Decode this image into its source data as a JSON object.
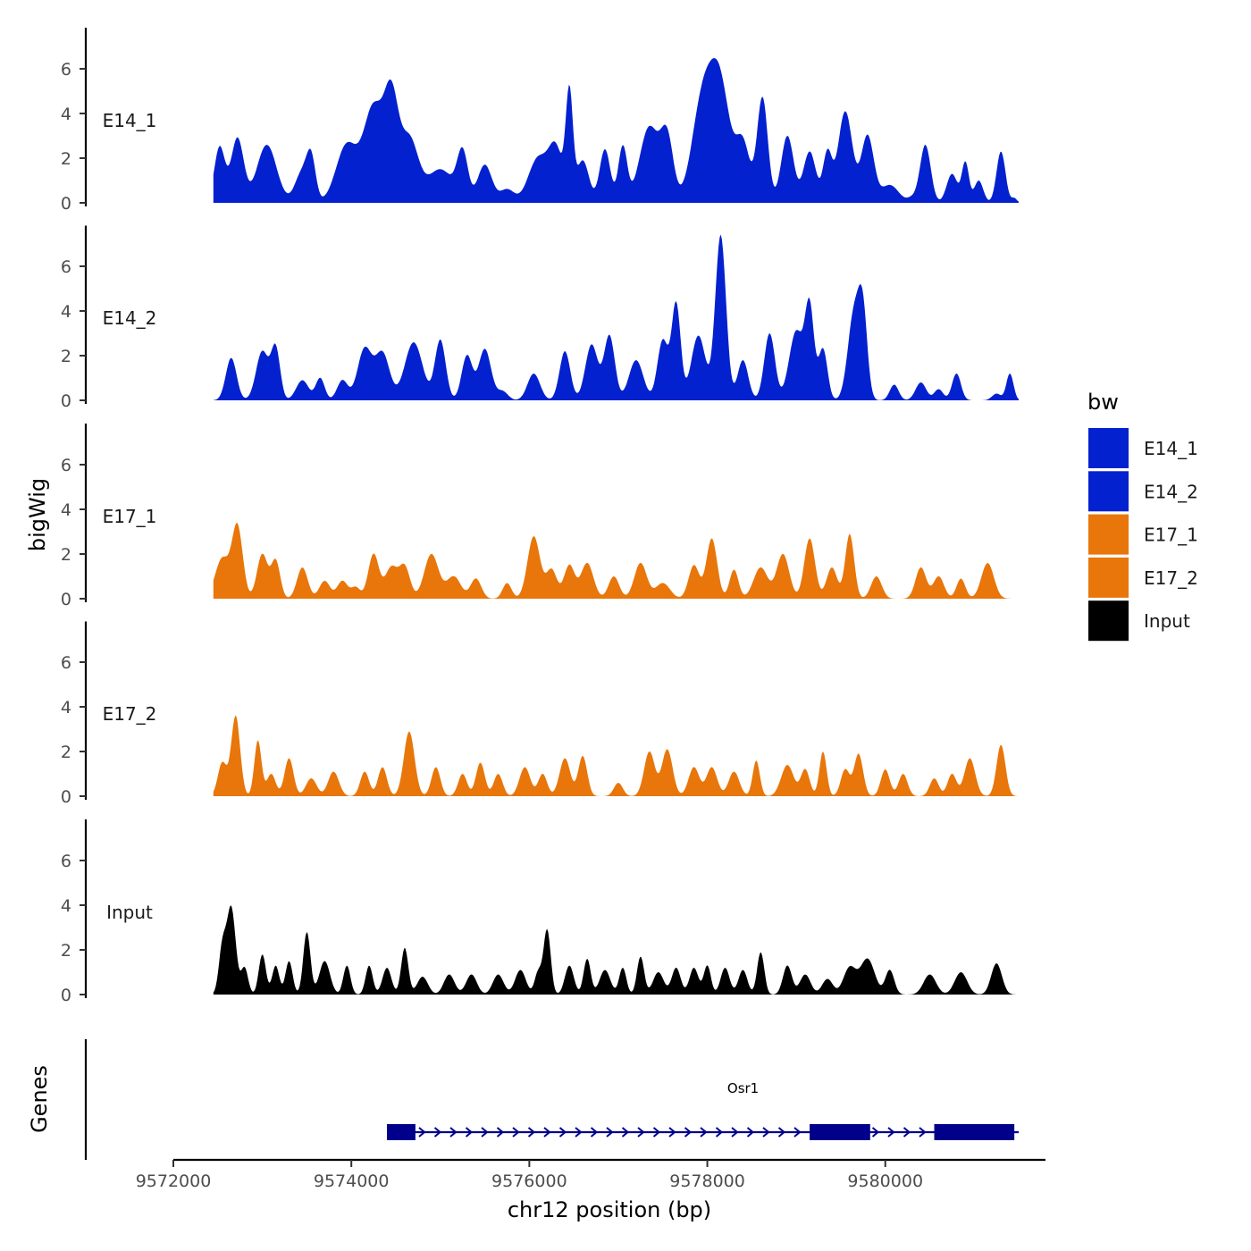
{
  "chart_data": {
    "type": "area",
    "ylabel": "bigWig",
    "xlabel": "chr12 position (bp)",
    "ylim": [
      0,
      7.5
    ],
    "yticks": [
      0,
      2,
      4,
      6
    ],
    "xlim": [
      9572000,
      9581800
    ],
    "xticks": [
      9572000,
      9574000,
      9576000,
      9578000,
      9580000
    ],
    "xtick_labels": [
      "9572000",
      "9574000",
      "9576000",
      "9578000",
      "9580000"
    ],
    "legend": {
      "title": "bw",
      "items": [
        {
          "label": "E14_1",
          "color": "#0421CF"
        },
        {
          "label": "E14_2",
          "color": "#0421CF"
        },
        {
          "label": "E17_1",
          "color": "#E8760A"
        },
        {
          "label": "E17_2",
          "color": "#E8760A"
        },
        {
          "label": "Input",
          "color": "#000000"
        }
      ]
    },
    "tracks": [
      {
        "name": "E14_1",
        "color": "#0421CF",
        "peaks": [
          [
            9572520,
            2.5,
            60
          ],
          [
            9572720,
            2.9,
            70
          ],
          [
            9573050,
            2.6,
            110
          ],
          [
            9573450,
            1.4,
            80
          ],
          [
            9573550,
            1.7,
            50
          ],
          [
            9573950,
            2.6,
            120
          ],
          [
            9574250,
            4.2,
            110
          ],
          [
            9574450,
            4.3,
            80
          ],
          [
            9574650,
            2.8,
            100
          ],
          [
            9575000,
            1.5,
            150
          ],
          [
            9575250,
            2.1,
            60
          ],
          [
            9575500,
            1.7,
            80
          ],
          [
            9575750,
            0.6,
            80
          ],
          [
            9576100,
            2.0,
            110
          ],
          [
            9576300,
            2.3,
            80
          ],
          [
            9576450,
            4.7,
            40
          ],
          [
            9576600,
            1.9,
            70
          ],
          [
            9576850,
            2.4,
            60
          ],
          [
            9577050,
            2.5,
            50
          ],
          [
            9577350,
            3.4,
            110
          ],
          [
            9577550,
            2.7,
            70
          ],
          [
            9577950,
            4.6,
            120
          ],
          [
            9578150,
            4.8,
            110
          ],
          [
            9578400,
            2.6,
            80
          ],
          [
            9578620,
            4.7,
            60
          ],
          [
            9578900,
            3.0,
            70
          ],
          [
            9579150,
            2.3,
            70
          ],
          [
            9579350,
            2.2,
            50
          ],
          [
            9579550,
            4.1,
            80
          ],
          [
            9579800,
            3.0,
            70
          ],
          [
            9580050,
            0.8,
            100
          ],
          [
            9580300,
            0.2,
            50
          ],
          [
            9580450,
            2.6,
            60
          ],
          [
            9580750,
            1.3,
            60
          ],
          [
            9580900,
            1.8,
            40
          ],
          [
            9581050,
            1.0,
            50
          ],
          [
            9581300,
            2.3,
            50
          ],
          [
            9581450,
            0.2,
            30
          ]
        ]
      },
      {
        "name": "E14_2",
        "color": "#0421CF",
        "peaks": [
          [
            9572650,
            1.9,
            60
          ],
          [
            9573000,
            2.2,
            70
          ],
          [
            9573150,
            2.3,
            50
          ],
          [
            9573450,
            0.9,
            70
          ],
          [
            9573650,
            1.0,
            50
          ],
          [
            9573900,
            0.9,
            60
          ],
          [
            9574150,
            2.3,
            80
          ],
          [
            9574350,
            2.1,
            80
          ],
          [
            9574700,
            2.6,
            100
          ],
          [
            9575000,
            2.7,
            60
          ],
          [
            9575300,
            2.0,
            60
          ],
          [
            9575500,
            2.3,
            70
          ],
          [
            9575700,
            0.4,
            60
          ],
          [
            9576050,
            1.2,
            70
          ],
          [
            9576400,
            2.2,
            60
          ],
          [
            9576700,
            2.5,
            70
          ],
          [
            9576900,
            2.9,
            60
          ],
          [
            9577200,
            1.8,
            80
          ],
          [
            9577500,
            2.7,
            60
          ],
          [
            9577650,
            4.3,
            50
          ],
          [
            9577900,
            2.9,
            80
          ],
          [
            9578150,
            7.4,
            60
          ],
          [
            9578400,
            1.8,
            60
          ],
          [
            9578700,
            3.0,
            60
          ],
          [
            9579000,
            3.1,
            80
          ],
          [
            9579150,
            4.0,
            50
          ],
          [
            9579300,
            2.3,
            50
          ],
          [
            9579650,
            3.9,
            70
          ],
          [
            9579750,
            3.4,
            50
          ],
          [
            9580100,
            0.7,
            50
          ],
          [
            9580400,
            0.8,
            60
          ],
          [
            9580600,
            0.5,
            50
          ],
          [
            9580800,
            1.2,
            50
          ],
          [
            9581250,
            0.3,
            50
          ],
          [
            9581400,
            1.2,
            40
          ]
        ]
      },
      {
        "name": "E17_1",
        "color": "#E8760A",
        "peaks": [
          [
            9572550,
            1.8,
            80
          ],
          [
            9572720,
            3.2,
            60
          ],
          [
            9573000,
            2.0,
            60
          ],
          [
            9573150,
            1.7,
            50
          ],
          [
            9573450,
            1.4,
            60
          ],
          [
            9573700,
            0.8,
            60
          ],
          [
            9573900,
            0.8,
            60
          ],
          [
            9574050,
            0.5,
            50
          ],
          [
            9574250,
            2.0,
            60
          ],
          [
            9574450,
            1.4,
            70
          ],
          [
            9574600,
            1.4,
            60
          ],
          [
            9574900,
            2.0,
            80
          ],
          [
            9575150,
            1.0,
            80
          ],
          [
            9575400,
            0.9,
            60
          ],
          [
            9575750,
            0.7,
            50
          ],
          [
            9576050,
            2.8,
            70
          ],
          [
            9576250,
            1.3,
            60
          ],
          [
            9576450,
            1.5,
            60
          ],
          [
            9576650,
            1.6,
            70
          ],
          [
            9576950,
            1.0,
            60
          ],
          [
            9577250,
            1.6,
            70
          ],
          [
            9577500,
            0.7,
            80
          ],
          [
            9577850,
            1.5,
            60
          ],
          [
            9578050,
            2.7,
            60
          ],
          [
            9578300,
            1.3,
            50
          ],
          [
            9578600,
            1.4,
            80
          ],
          [
            9578850,
            2.0,
            70
          ],
          [
            9579150,
            2.7,
            60
          ],
          [
            9579400,
            1.4,
            60
          ],
          [
            9579600,
            2.9,
            50
          ],
          [
            9579900,
            1.0,
            60
          ],
          [
            9580400,
            1.4,
            60
          ],
          [
            9580600,
            1.0,
            60
          ],
          [
            9580850,
            0.9,
            50
          ],
          [
            9581150,
            1.6,
            70
          ]
        ]
      },
      {
        "name": "E17_2",
        "color": "#E8760A",
        "peaks": [
          [
            9572550,
            1.5,
            50
          ],
          [
            9572700,
            3.6,
            50
          ],
          [
            9572950,
            2.5,
            40
          ],
          [
            9573100,
            1.0,
            50
          ],
          [
            9573300,
            1.7,
            50
          ],
          [
            9573550,
            0.8,
            60
          ],
          [
            9573800,
            1.1,
            60
          ],
          [
            9574150,
            1.1,
            50
          ],
          [
            9574350,
            1.3,
            50
          ],
          [
            9574650,
            2.9,
            60
          ],
          [
            9574950,
            1.3,
            50
          ],
          [
            9575250,
            1.0,
            50
          ],
          [
            9575450,
            1.5,
            50
          ],
          [
            9575650,
            1.0,
            50
          ],
          [
            9575950,
            1.3,
            60
          ],
          [
            9576150,
            1.0,
            50
          ],
          [
            9576400,
            1.7,
            60
          ],
          [
            9576600,
            1.8,
            50
          ],
          [
            9577000,
            0.6,
            50
          ],
          [
            9577350,
            2.0,
            60
          ],
          [
            9577550,
            2.1,
            60
          ],
          [
            9577850,
            1.3,
            60
          ],
          [
            9578050,
            1.3,
            60
          ],
          [
            9578300,
            1.1,
            60
          ],
          [
            9578550,
            1.6,
            40
          ],
          [
            9578900,
            1.4,
            70
          ],
          [
            9579100,
            1.2,
            50
          ],
          [
            9579300,
            2.0,
            40
          ],
          [
            9579550,
            1.2,
            50
          ],
          [
            9579700,
            1.9,
            50
          ],
          [
            9580000,
            1.2,
            50
          ],
          [
            9580200,
            1.0,
            50
          ],
          [
            9580550,
            0.8,
            50
          ],
          [
            9580750,
            1.0,
            50
          ],
          [
            9580950,
            1.7,
            60
          ],
          [
            9581300,
            2.3,
            50
          ]
        ]
      },
      {
        "name": "Input",
        "color": "#000000",
        "peaks": [
          [
            9572550,
            2.0,
            40
          ],
          [
            9572650,
            3.9,
            50
          ],
          [
            9572800,
            1.2,
            40
          ],
          [
            9573000,
            1.8,
            40
          ],
          [
            9573150,
            1.3,
            40
          ],
          [
            9573300,
            1.5,
            40
          ],
          [
            9573500,
            2.8,
            40
          ],
          [
            9573700,
            1.5,
            60
          ],
          [
            9573950,
            1.3,
            40
          ],
          [
            9574200,
            1.3,
            40
          ],
          [
            9574400,
            1.2,
            50
          ],
          [
            9574600,
            2.1,
            40
          ],
          [
            9574800,
            0.8,
            60
          ],
          [
            9575100,
            0.9,
            60
          ],
          [
            9575350,
            0.9,
            60
          ],
          [
            9575650,
            0.9,
            60
          ],
          [
            9575900,
            1.1,
            60
          ],
          [
            9576100,
            1.0,
            40
          ],
          [
            9576200,
            2.9,
            40
          ],
          [
            9576450,
            1.3,
            50
          ],
          [
            9576650,
            1.6,
            40
          ],
          [
            9576850,
            1.1,
            60
          ],
          [
            9577050,
            1.2,
            40
          ],
          [
            9577250,
            1.7,
            40
          ],
          [
            9577450,
            1.0,
            60
          ],
          [
            9577650,
            1.2,
            50
          ],
          [
            9577850,
            1.2,
            50
          ],
          [
            9578000,
            1.3,
            40
          ],
          [
            9578200,
            1.2,
            50
          ],
          [
            9578400,
            1.1,
            50
          ],
          [
            9578600,
            1.9,
            40
          ],
          [
            9578900,
            1.3,
            50
          ],
          [
            9579100,
            0.9,
            60
          ],
          [
            9579350,
            0.7,
            60
          ],
          [
            9579600,
            1.2,
            70
          ],
          [
            9579800,
            1.6,
            80
          ],
          [
            9580050,
            1.1,
            50
          ],
          [
            9580500,
            0.9,
            70
          ],
          [
            9580850,
            1.0,
            70
          ],
          [
            9581250,
            1.4,
            60
          ]
        ]
      }
    ],
    "genes": [
      {
        "name": "Osr1",
        "strand": "+",
        "start": 9574400,
        "end": 9581500,
        "exons": [
          [
            9574400,
            9574720
          ],
          [
            9579150,
            9579830
          ],
          [
            9580550,
            9581450
          ]
        ]
      }
    ],
    "genes_track_label": "Genes"
  }
}
